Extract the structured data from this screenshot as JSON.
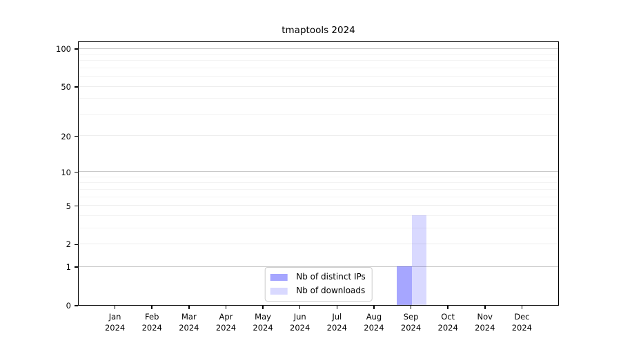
{
  "title": "tmaptools 2024",
  "chart_data": {
    "type": "bar",
    "title": "tmaptools 2024",
    "scale": "log1p",
    "year": "2024",
    "categories": [
      "Jan",
      "Feb",
      "Mar",
      "Apr",
      "May",
      "Jun",
      "Jul",
      "Aug",
      "Sep",
      "Oct",
      "Nov",
      "Dec"
    ],
    "series": [
      {
        "name": "Nb of distinct IPs",
        "color": "rgba(0,0,255,0.35)",
        "values": [
          0,
          0,
          0,
          0,
          0,
          0,
          0,
          0,
          1,
          0,
          0,
          0
        ]
      },
      {
        "name": "Nb of downloads",
        "color": "rgba(0,0,255,0.15)",
        "values": [
          0,
          0,
          0,
          0,
          0,
          0,
          0,
          0,
          4,
          0,
          0,
          0
        ]
      }
    ],
    "yticks": [
      0,
      1,
      2,
      5,
      10,
      20,
      50,
      100
    ],
    "ylim": [
      0,
      115
    ],
    "grid": {
      "major": [
        1,
        10,
        100
      ],
      "labeled": [
        2,
        5,
        20,
        50
      ],
      "minor": [
        3,
        4,
        6,
        7,
        8,
        9,
        30,
        40,
        60,
        70,
        80,
        90
      ]
    },
    "legend_position": "lower center"
  },
  "colors": {
    "grid_major": "#c9c9c9",
    "grid_labeled": "#ededed",
    "grid_minor": "#f3f3f3",
    "axis": "#000000",
    "legend_border": "#cccccc",
    "background": "#ffffff"
  }
}
